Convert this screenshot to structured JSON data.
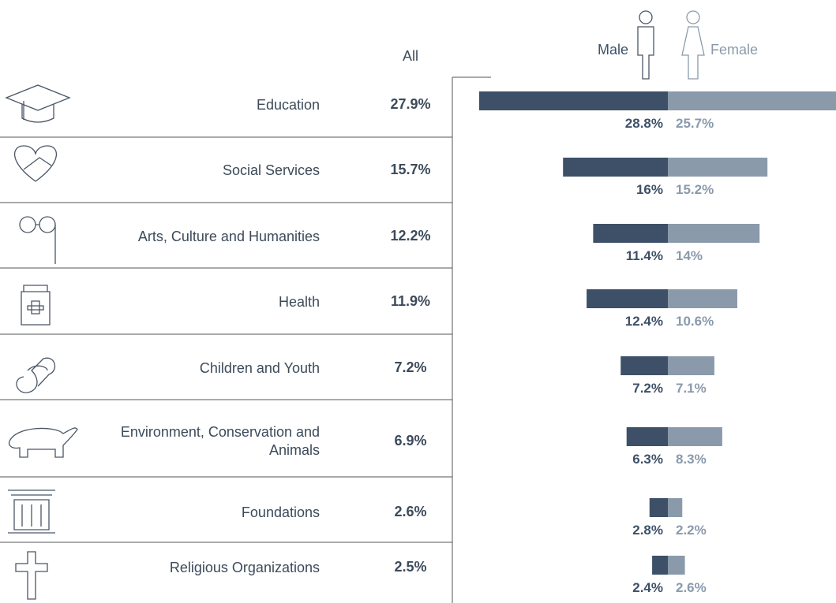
{
  "chart_data": {
    "type": "butterfly",
    "categories": [
      "Education",
      "Social Services",
      "Arts, Culture and Humanities",
      "Health",
      "Children and Youth",
      "Environment, Conservation and Animals",
      "Foundations",
      "Religious Organizations"
    ],
    "all": {
      "name": "All",
      "values": [
        27.9,
        15.7,
        12.2,
        11.9,
        7.2,
        6.9,
        2.6,
        2.5
      ],
      "value_labels": [
        "27.9%",
        "15.7%",
        "12.2%",
        "11.9%",
        "7.2%",
        "6.9%",
        "2.6%",
        "2.5%"
      ]
    },
    "series": [
      {
        "name": "Male",
        "color": "#3d5068",
        "values": [
          28.8,
          16,
          11.4,
          12.4,
          7.2,
          6.3,
          2.8,
          2.4
        ],
        "value_labels": [
          "28.8%",
          "16%",
          "11.4%",
          "12.4%",
          "7.2%",
          "6.3%",
          "2.8%",
          "2.4%"
        ]
      },
      {
        "name": "Female",
        "color": "#8a9aab",
        "values": [
          25.7,
          15.2,
          14,
          10.6,
          7.1,
          8.3,
          2.2,
          2.6
        ],
        "value_labels": [
          "25.7%",
          "15.2%",
          "14%",
          "10.6%",
          "7.1%",
          "8.3%",
          "2.2%",
          "2.6%"
        ]
      }
    ]
  }
}
